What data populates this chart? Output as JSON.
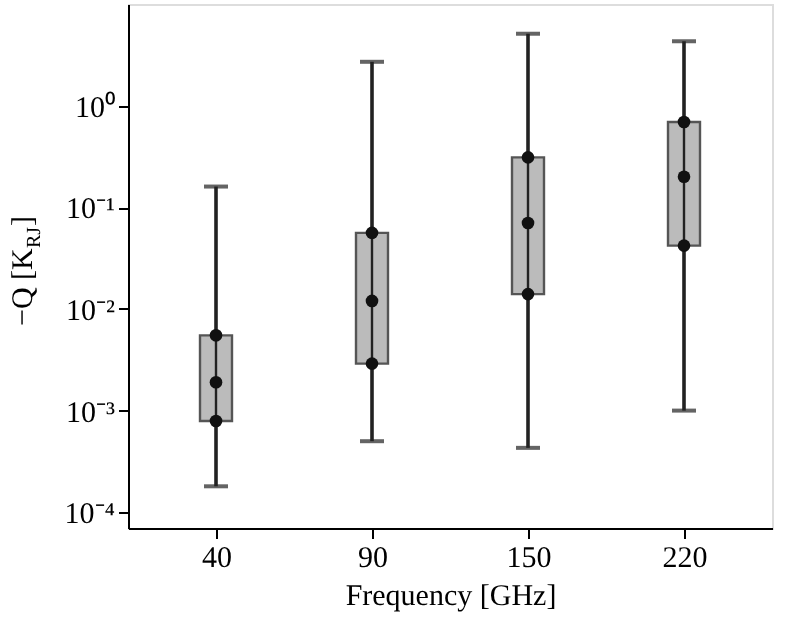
{
  "chart_data": {
    "type": "box",
    "xlabel": "Frequency [GHz]",
    "ylabel": "−Q [K$_{RJ}$]",
    "categories": [
      "40",
      "90",
      "150",
      "220"
    ],
    "boxes": [
      {
        "low": 0.00018,
        "q1": 0.00079,
        "median": 0.0019,
        "q3": 0.0055,
        "high": 0.16
      },
      {
        "low": 0.0005,
        "q1": 0.0029,
        "median": 0.012,
        "q3": 0.056,
        "high": 2.7
      },
      {
        "low": 0.00043,
        "q1": 0.014,
        "median": 0.07,
        "q3": 0.31,
        "high": 5.1
      },
      {
        "low": 0.001,
        "q1": 0.042,
        "median": 0.2,
        "q3": 0.69,
        "high": 4.3
      }
    ],
    "color": "#bbbbbb",
    "log": "y",
    "ylim": [
      7e-05,
      10
    ],
    "yticks": [
      {
        "value": 0.0001,
        "label": "10⁻⁴"
      },
      {
        "value": 0.001,
        "label": "10⁻³"
      },
      {
        "value": 0.01,
        "label": "10⁻²"
      },
      {
        "value": 0.1,
        "label": "10⁻¹"
      },
      {
        "value": 1,
        "label": "10⁰"
      }
    ],
    "grid": false
  }
}
